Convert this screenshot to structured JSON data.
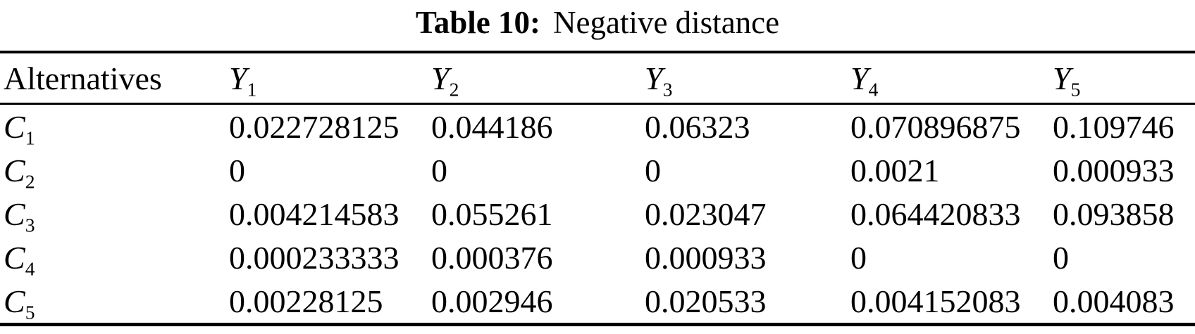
{
  "page": {
    "background_color": "#ffffff",
    "text_color": "#000000"
  },
  "caption": {
    "label": "Table 10:",
    "title": "Negative distance"
  },
  "table": {
    "row_header_label": "Alternatives",
    "columns": [
      {
        "base": "Y",
        "sub": "1"
      },
      {
        "base": "Y",
        "sub": "2"
      },
      {
        "base": "Y",
        "sub": "3"
      },
      {
        "base": "Y",
        "sub": "4"
      },
      {
        "base": "Y",
        "sub": "5"
      }
    ],
    "rows": [
      {
        "label": {
          "base": "C",
          "sub": "1"
        },
        "values": [
          "0.022728125",
          "0.044186",
          "0.06323",
          "0.070896875",
          "0.109746"
        ]
      },
      {
        "label": {
          "base": "C",
          "sub": "2"
        },
        "values": [
          "0",
          "0",
          "0",
          "0.0021",
          "0.000933"
        ]
      },
      {
        "label": {
          "base": "C",
          "sub": "3"
        },
        "values": [
          "0.004214583",
          "0.055261",
          "0.023047",
          "0.064420833",
          "0.093858"
        ]
      },
      {
        "label": {
          "base": "C",
          "sub": "4"
        },
        "values": [
          "0.000233333",
          "0.000376",
          "0.000933",
          "0",
          "0"
        ]
      },
      {
        "label": {
          "base": "C",
          "sub": "5"
        },
        "values": [
          "0.00228125",
          "0.002946",
          "0.020533",
          "0.004152083",
          "0.004083"
        ]
      }
    ]
  }
}
